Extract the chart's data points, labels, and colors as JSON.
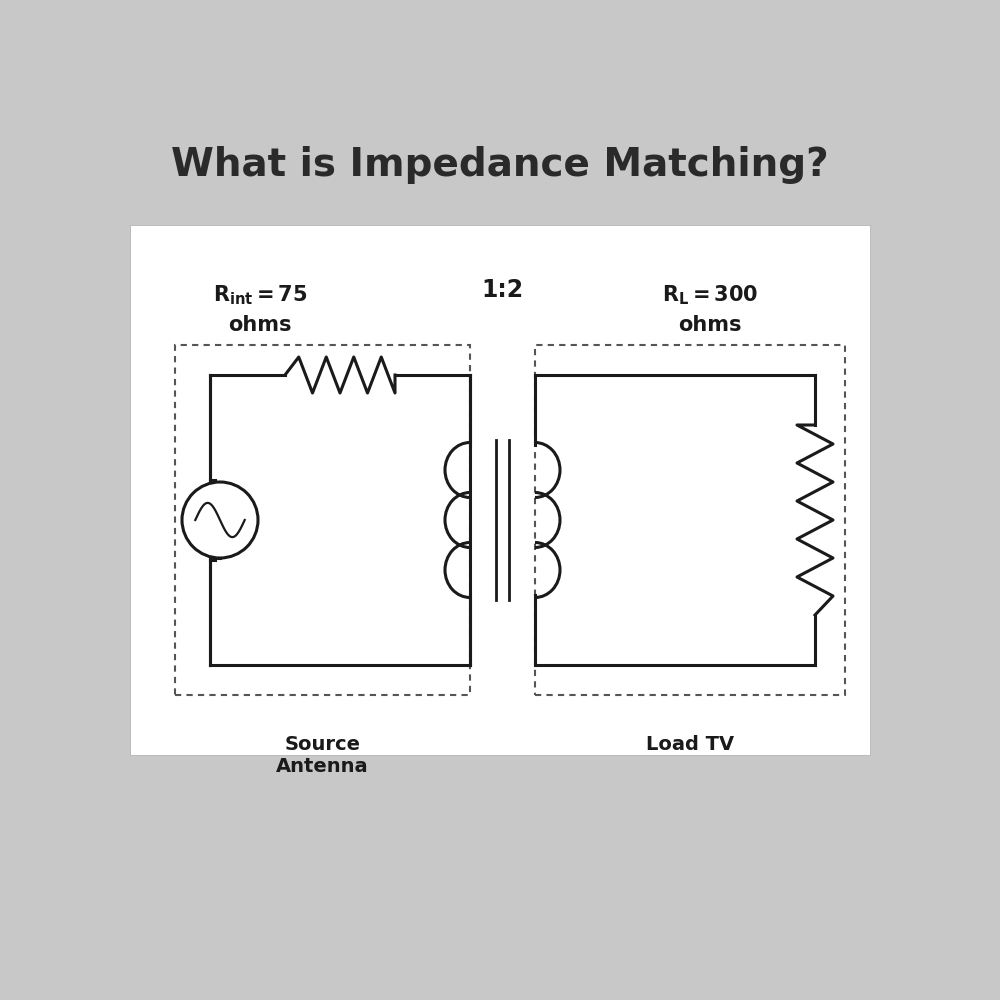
{
  "title": "What is Impedance Matching?",
  "title_fontsize": 28,
  "title_color": "#2a2a2a",
  "background_color": "#c8c8c8",
  "panel_color": "#ffffff",
  "circuit_color": "#1a1a1a",
  "text_color": "#1a1a1a",
  "label_rint": "= 75",
  "label_rint_sub": "int",
  "label_rint_line2": "ohms",
  "label_rl": "= 300",
  "label_rl_sub": "L",
  "label_rl_line2": "ohms",
  "transformer_label": "1:2",
  "source_box_label": "Source\nAntenna",
  "load_box_label": "Load TV"
}
